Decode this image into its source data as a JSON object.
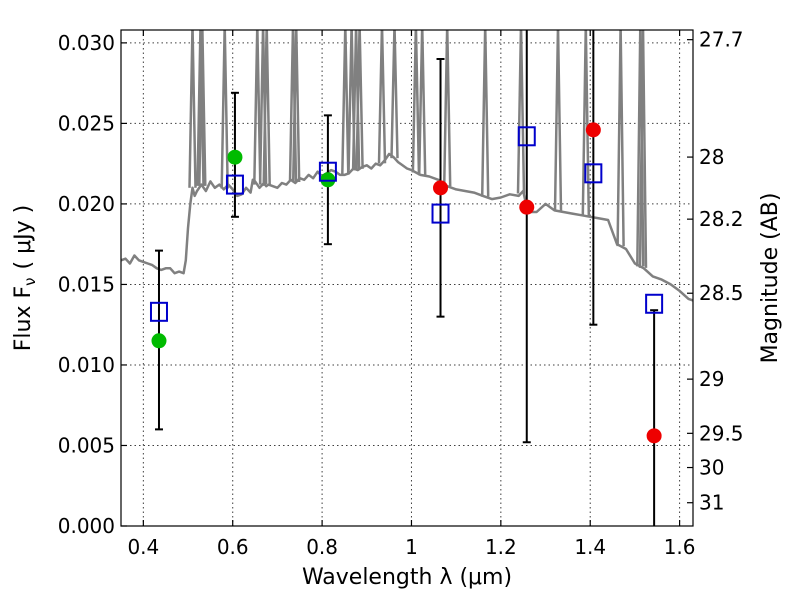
{
  "chart_data": {
    "type": "scatter",
    "xlabel": "Wavelength  λ (μm)",
    "ylabel": "Flux  F",
    "ylabel_sub": "ν",
    "ylabel_unit": "( μJy )",
    "y2label": "Magnitude (AB)",
    "xlim": [
      0.35,
      1.63
    ],
    "ylim": [
      0,
      0.0308
    ],
    "grid": true,
    "x_ticks": [
      {
        "value": 0.4,
        "label": "0.4"
      },
      {
        "value": 0.6,
        "label": "0.6"
      },
      {
        "value": 0.8,
        "label": "0.8"
      },
      {
        "value": 1.0,
        "label": "1"
      },
      {
        "value": 1.2,
        "label": "1.2"
      },
      {
        "value": 1.4,
        "label": "1.4"
      },
      {
        "value": 1.6,
        "label": "1.6"
      }
    ],
    "y_ticks": [
      {
        "value": 0.0,
        "label": "0.000"
      },
      {
        "value": 0.005,
        "label": "0.005"
      },
      {
        "value": 0.01,
        "label": "0.010"
      },
      {
        "value": 0.015,
        "label": "0.015"
      },
      {
        "value": 0.02,
        "label": "0.020"
      },
      {
        "value": 0.025,
        "label": "0.025"
      },
      {
        "value": 0.03,
        "label": "0.030"
      }
    ],
    "y2_ticks": [
      {
        "mag": 27.7,
        "label": "27.7"
      },
      {
        "mag": 28,
        "label": "28"
      },
      {
        "mag": 28.2,
        "label": "28.2"
      },
      {
        "mag": 28.5,
        "label": "28.5"
      },
      {
        "mag": 29,
        "label": "29"
      },
      {
        "mag": 29.5,
        "label": "29.5"
      },
      {
        "mag": 30,
        "label": "30"
      },
      {
        "mag": 31,
        "label": "31"
      }
    ],
    "series": [
      {
        "kind": "line",
        "color": "#808080",
        "x": [
          0.35,
          0.36,
          0.37,
          0.38,
          0.39,
          0.4,
          0.41,
          0.42,
          0.43,
          0.44,
          0.45,
          0.46,
          0.47,
          0.48,
          0.49,
          0.495,
          0.5,
          0.505,
          0.51,
          0.515,
          0.52,
          0.53,
          0.54,
          0.55,
          0.56,
          0.57,
          0.58,
          0.59,
          0.6,
          0.61,
          0.62,
          0.63,
          0.64,
          0.645,
          0.65,
          0.66,
          0.67,
          0.675,
          0.68,
          0.69,
          0.7,
          0.71,
          0.72,
          0.73,
          0.74,
          0.75,
          0.76,
          0.77,
          0.78,
          0.79,
          0.8,
          0.81,
          0.82,
          0.83,
          0.84,
          0.85,
          0.86,
          0.87,
          0.88,
          0.89,
          0.9,
          0.91,
          0.92,
          0.93,
          0.94,
          0.95,
          0.96,
          0.97,
          0.98,
          0.99,
          1.0,
          1.02,
          1.04,
          1.06,
          1.08,
          1.1,
          1.12,
          1.14,
          1.16,
          1.18,
          1.2,
          1.22,
          1.24,
          1.25,
          1.26,
          1.28,
          1.3,
          1.32,
          1.34,
          1.36,
          1.38,
          1.4,
          1.42,
          1.44,
          1.46,
          1.48,
          1.5,
          1.52,
          1.54,
          1.56,
          1.58,
          1.6,
          1.62,
          1.63
        ],
        "y": [
          0.0165,
          0.0166,
          0.0163,
          0.0168,
          0.0165,
          0.0164,
          0.0163,
          0.0162,
          0.016,
          0.0159,
          0.016,
          0.016,
          0.0157,
          0.0158,
          0.0157,
          0.0165,
          0.0185,
          0.02,
          0.021,
          0.0205,
          0.0208,
          0.0212,
          0.0208,
          0.0214,
          0.021,
          0.0212,
          0.0209,
          0.0212,
          0.0209,
          0.0205,
          0.0206,
          0.021,
          0.0207,
          0.0215,
          0.0214,
          0.021,
          0.0213,
          0.0211,
          0.0212,
          0.0211,
          0.021,
          0.0213,
          0.0212,
          0.0215,
          0.0213,
          0.0216,
          0.0215,
          0.0218,
          0.0216,
          0.022,
          0.0217,
          0.0219,
          0.0221,
          0.022,
          0.0218,
          0.0218,
          0.0219,
          0.0222,
          0.0221,
          0.0223,
          0.0224,
          0.0222,
          0.0225,
          0.0224,
          0.0227,
          0.0231,
          0.0229,
          0.0226,
          0.0224,
          0.0222,
          0.0221,
          0.0218,
          0.0217,
          0.0215,
          0.0211,
          0.0209,
          0.0208,
          0.0207,
          0.0205,
          0.0203,
          0.0204,
          0.0206,
          0.0205,
          0.0208,
          0.0195,
          0.0195,
          0.02,
          0.0196,
          0.0195,
          0.0194,
          0.0193,
          0.0192,
          0.0191,
          0.019,
          0.0175,
          0.0172,
          0.0163,
          0.016,
          0.0155,
          0.0153,
          0.015,
          0.0146,
          0.0141,
          0.014
        ]
      },
      {
        "kind": "spikes",
        "color": "#808080",
        "x": [
          0.51,
          0.528,
          0.532,
          0.582,
          0.655,
          0.668,
          0.676,
          0.735,
          0.742,
          0.852,
          0.866,
          0.876,
          0.884,
          0.934,
          0.962,
          1.01,
          1.024,
          1.08,
          1.165,
          1.245,
          1.328,
          1.39,
          1.468,
          1.512,
          1.518
        ]
      },
      {
        "name": "",
        "kind": "markers",
        "marker": "circle",
        "color": "#00bb00",
        "x": [
          0.435,
          0.605,
          0.813
        ],
        "y": [
          0.0115,
          0.0229,
          0.0215
        ]
      },
      {
        "name": "",
        "kind": "markers",
        "marker": "circle",
        "color": "#ee0000",
        "x": [
          1.065,
          1.258,
          1.407,
          1.543
        ],
        "y": [
          0.021,
          0.0198,
          0.0246,
          0.0056
        ]
      },
      {
        "name": "",
        "kind": "markers",
        "marker": "open-square",
        "color": "#0000cc",
        "x": [
          0.435,
          0.605,
          0.813,
          1.065,
          1.258,
          1.407,
          1.543
        ],
        "y": [
          0.0133,
          0.0212,
          0.022,
          0.0194,
          0.0242,
          0.0219,
          0.0138
        ]
      },
      {
        "name": "",
        "kind": "errorbars",
        "color": "#000000",
        "x": [
          0.435,
          0.605,
          0.813,
          1.065,
          1.258,
          1.407,
          1.543
        ],
        "ylow": [
          0.006,
          0.0192,
          0.0175,
          0.013,
          0.0052,
          0.0125,
          0.0
        ],
        "yhigh": [
          0.0171,
          0.0269,
          0.0255,
          0.029,
          0.0308,
          0.0308,
          0.0134
        ]
      }
    ]
  }
}
